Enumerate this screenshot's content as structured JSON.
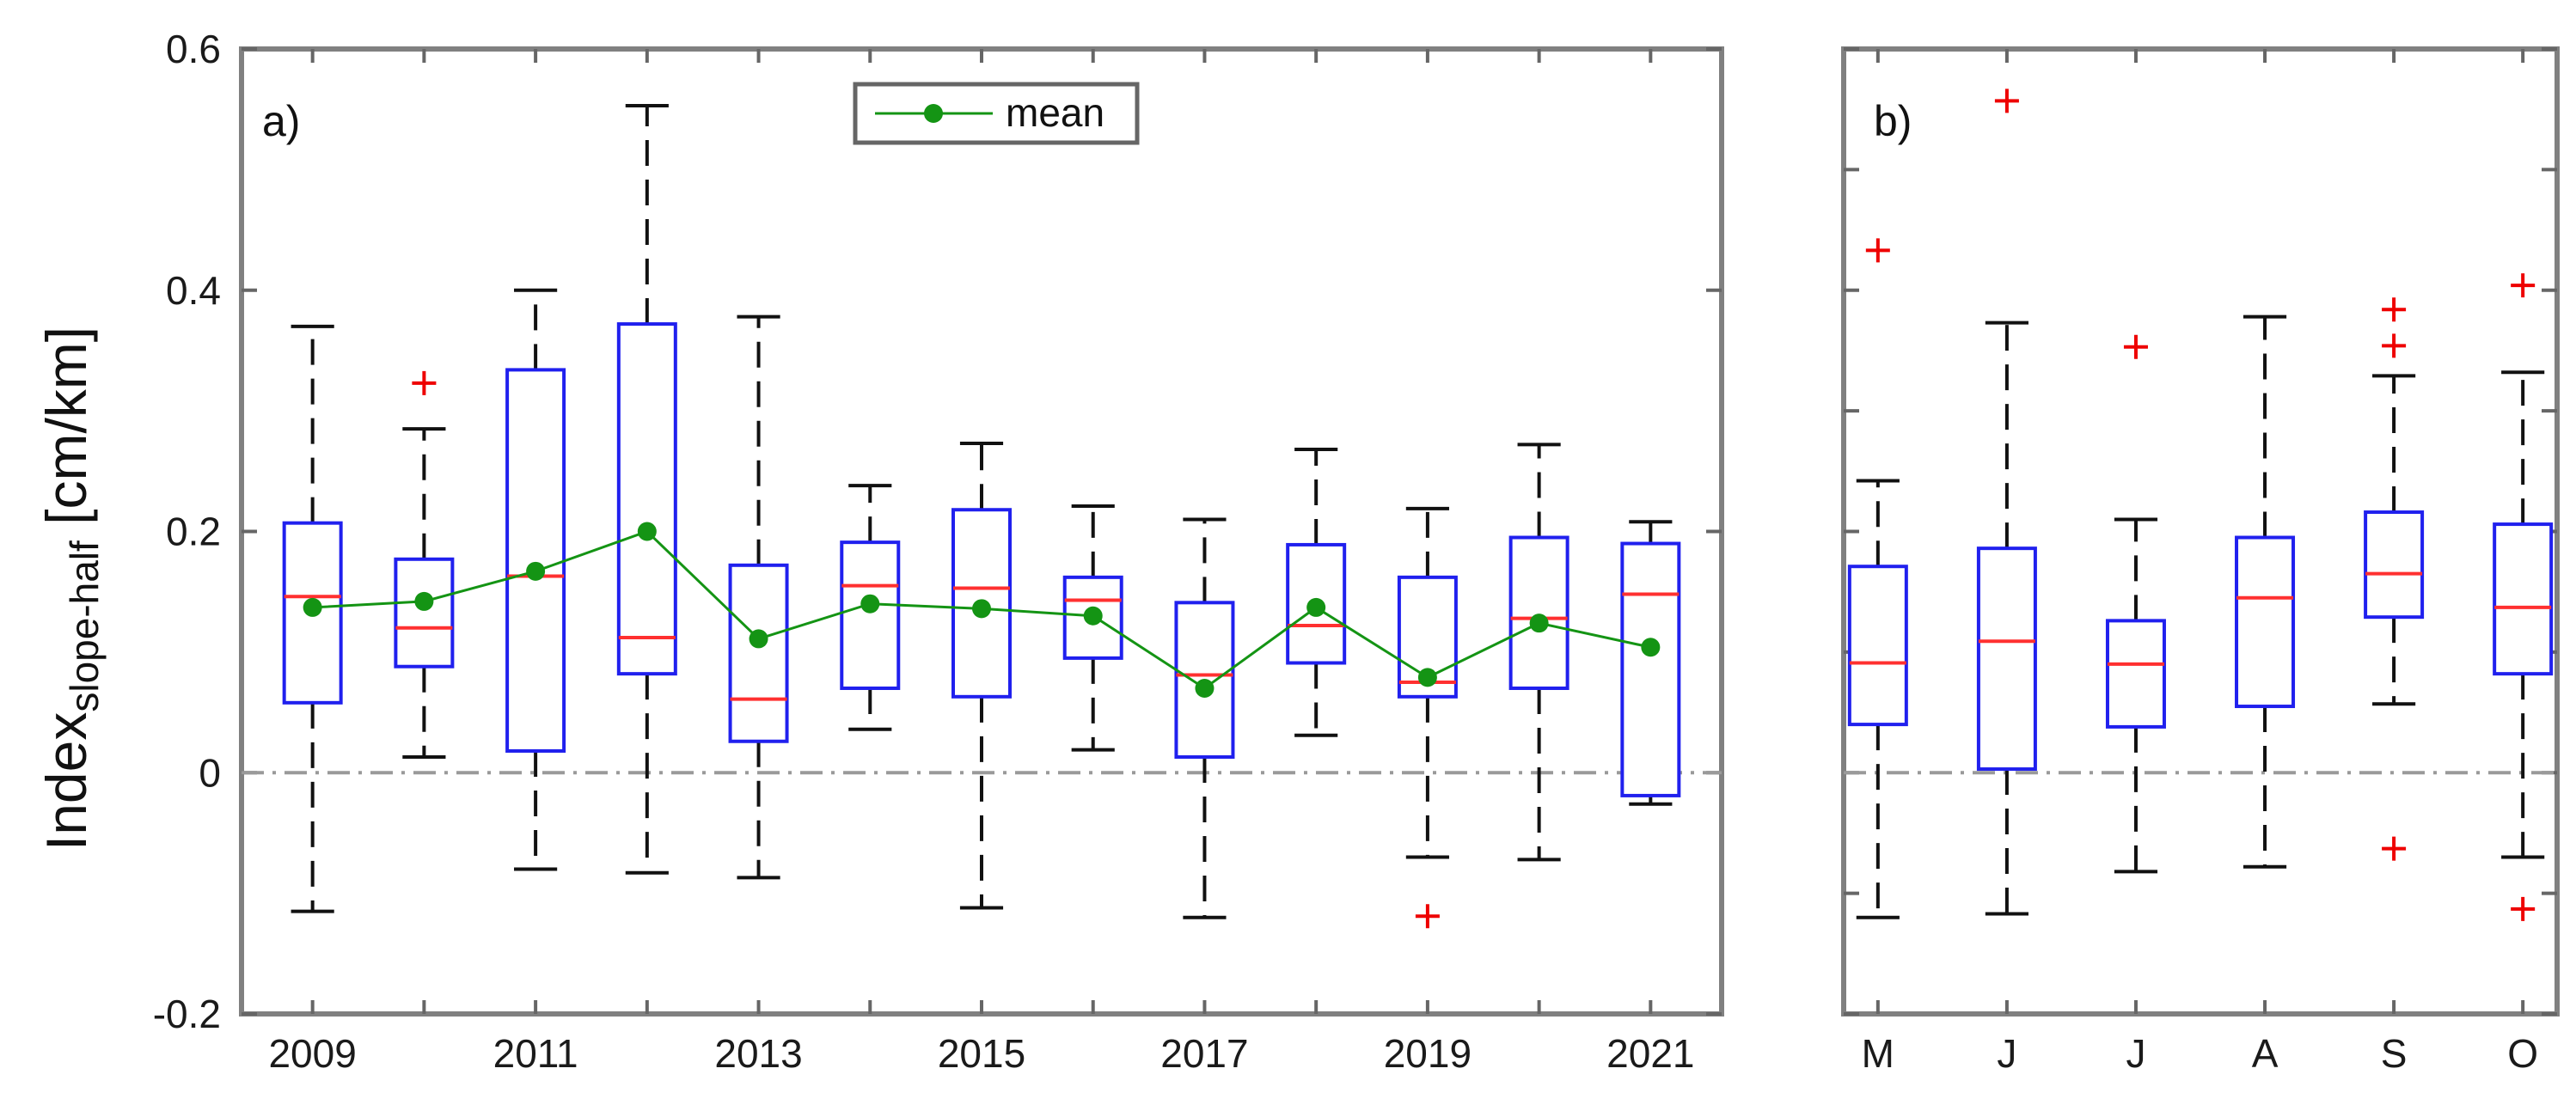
{
  "colors": {
    "box": "#2020ee",
    "median": "#ff3030",
    "outlier": "#ee0000",
    "whisker": "#111111",
    "mean": "#149414",
    "zero_line": "#9a9a9a",
    "frame": "#808080"
  },
  "chart_data": [
    {
      "id": "a",
      "type": "box",
      "panel_label": "a)",
      "ylabel_main": "Index",
      "ylabel_sub": "slope-half",
      "ylabel_unit": " [cm/km]",
      "ylim": [
        -0.2,
        0.6
      ],
      "yticks": [
        -0.2,
        0,
        0.2,
        0.4,
        0.6
      ],
      "ytick_labels": [
        "-0.2",
        "0",
        "0.2",
        "0.4",
        "0.6"
      ],
      "categories": [
        "2009",
        "2010",
        "2011",
        "2012",
        "2013",
        "2014",
        "2015",
        "2016",
        "2017",
        "2018",
        "2019",
        "2020",
        "2021"
      ],
      "xtick_labels": [
        "2009",
        "",
        "2011",
        "",
        "2013",
        "",
        "2015",
        "",
        "2017",
        "",
        "2019",
        "",
        "2021"
      ],
      "reference_line": 0,
      "legend": {
        "label": "mean",
        "placement": "top-center"
      },
      "boxes": [
        {
          "whislo": -0.115,
          "q1": 0.058,
          "med": 0.146,
          "q3": 0.207,
          "whishi": 0.37,
          "outliers": []
        },
        {
          "whislo": 0.013,
          "q1": 0.088,
          "med": 0.12,
          "q3": 0.177,
          "whishi": 0.285,
          "outliers": [
            0.323
          ]
        },
        {
          "whislo": -0.08,
          "q1": 0.018,
          "med": 0.163,
          "q3": 0.334,
          "whishi": 0.4,
          "outliers": []
        },
        {
          "whislo": -0.083,
          "q1": 0.082,
          "med": 0.112,
          "q3": 0.372,
          "whishi": 0.553,
          "outliers": []
        },
        {
          "whislo": -0.087,
          "q1": 0.026,
          "med": 0.061,
          "q3": 0.172,
          "whishi": 0.378,
          "outliers": []
        },
        {
          "whislo": 0.036,
          "q1": 0.07,
          "med": 0.155,
          "q3": 0.191,
          "whishi": 0.238,
          "outliers": []
        },
        {
          "whislo": -0.112,
          "q1": 0.063,
          "med": 0.153,
          "q3": 0.218,
          "whishi": 0.273,
          "outliers": []
        },
        {
          "whislo": 0.019,
          "q1": 0.095,
          "med": 0.143,
          "q3": 0.162,
          "whishi": 0.221,
          "outliers": []
        },
        {
          "whislo": -0.12,
          "q1": 0.013,
          "med": 0.081,
          "q3": 0.141,
          "whishi": 0.21,
          "outliers": []
        },
        {
          "whislo": 0.031,
          "q1": 0.091,
          "med": 0.122,
          "q3": 0.189,
          "whishi": 0.268,
          "outliers": []
        },
        {
          "whislo": -0.07,
          "q1": 0.063,
          "med": 0.075,
          "q3": 0.162,
          "whishi": 0.219,
          "outliers": [
            -0.119
          ]
        },
        {
          "whislo": -0.072,
          "q1": 0.07,
          "med": 0.128,
          "q3": 0.195,
          "whishi": 0.272,
          "outliers": []
        },
        {
          "whislo": -0.026,
          "q1": -0.019,
          "med": 0.148,
          "q3": 0.19,
          "whishi": 0.208,
          "outliers": []
        }
      ],
      "means": [
        0.137,
        0.142,
        0.167,
        0.2,
        0.111,
        0.14,
        0.136,
        0.13,
        0.07,
        0.137,
        0.079,
        0.124,
        0.104
      ]
    },
    {
      "id": "b",
      "type": "box",
      "panel_label": "b)",
      "ylim": [
        -0.2,
        0.6
      ],
      "yticks": [
        -0.2,
        -0.1,
        0,
        0.1,
        0.2,
        0.3,
        0.4,
        0.5,
        0.6
      ],
      "categories": [
        "M",
        "J",
        "J",
        "A",
        "S",
        "O"
      ],
      "xtick_labels": [
        "M",
        "J",
        "J",
        "A",
        "S",
        "O"
      ],
      "reference_line": 0,
      "boxes": [
        {
          "whislo": -0.12,
          "q1": 0.04,
          "med": 0.091,
          "q3": 0.171,
          "whishi": 0.242,
          "outliers": [
            0.433
          ]
        },
        {
          "whislo": -0.117,
          "q1": 0.003,
          "med": 0.109,
          "q3": 0.186,
          "whishi": 0.373,
          "outliers": [
            0.557
          ]
        },
        {
          "whislo": -0.082,
          "q1": 0.038,
          "med": 0.09,
          "q3": 0.126,
          "whishi": 0.21,
          "outliers": [
            0.353
          ]
        },
        {
          "whislo": -0.078,
          "q1": 0.055,
          "med": 0.145,
          "q3": 0.195,
          "whishi": 0.378,
          "outliers": []
        },
        {
          "whislo": 0.057,
          "q1": 0.129,
          "med": 0.165,
          "q3": 0.216,
          "whishi": 0.329,
          "outliers": [
            0.384,
            0.354,
            -0.063
          ]
        },
        {
          "whislo": -0.07,
          "q1": 0.082,
          "med": 0.137,
          "q3": 0.206,
          "whishi": 0.332,
          "outliers": [
            0.404,
            -0.113
          ]
        }
      ]
    }
  ]
}
